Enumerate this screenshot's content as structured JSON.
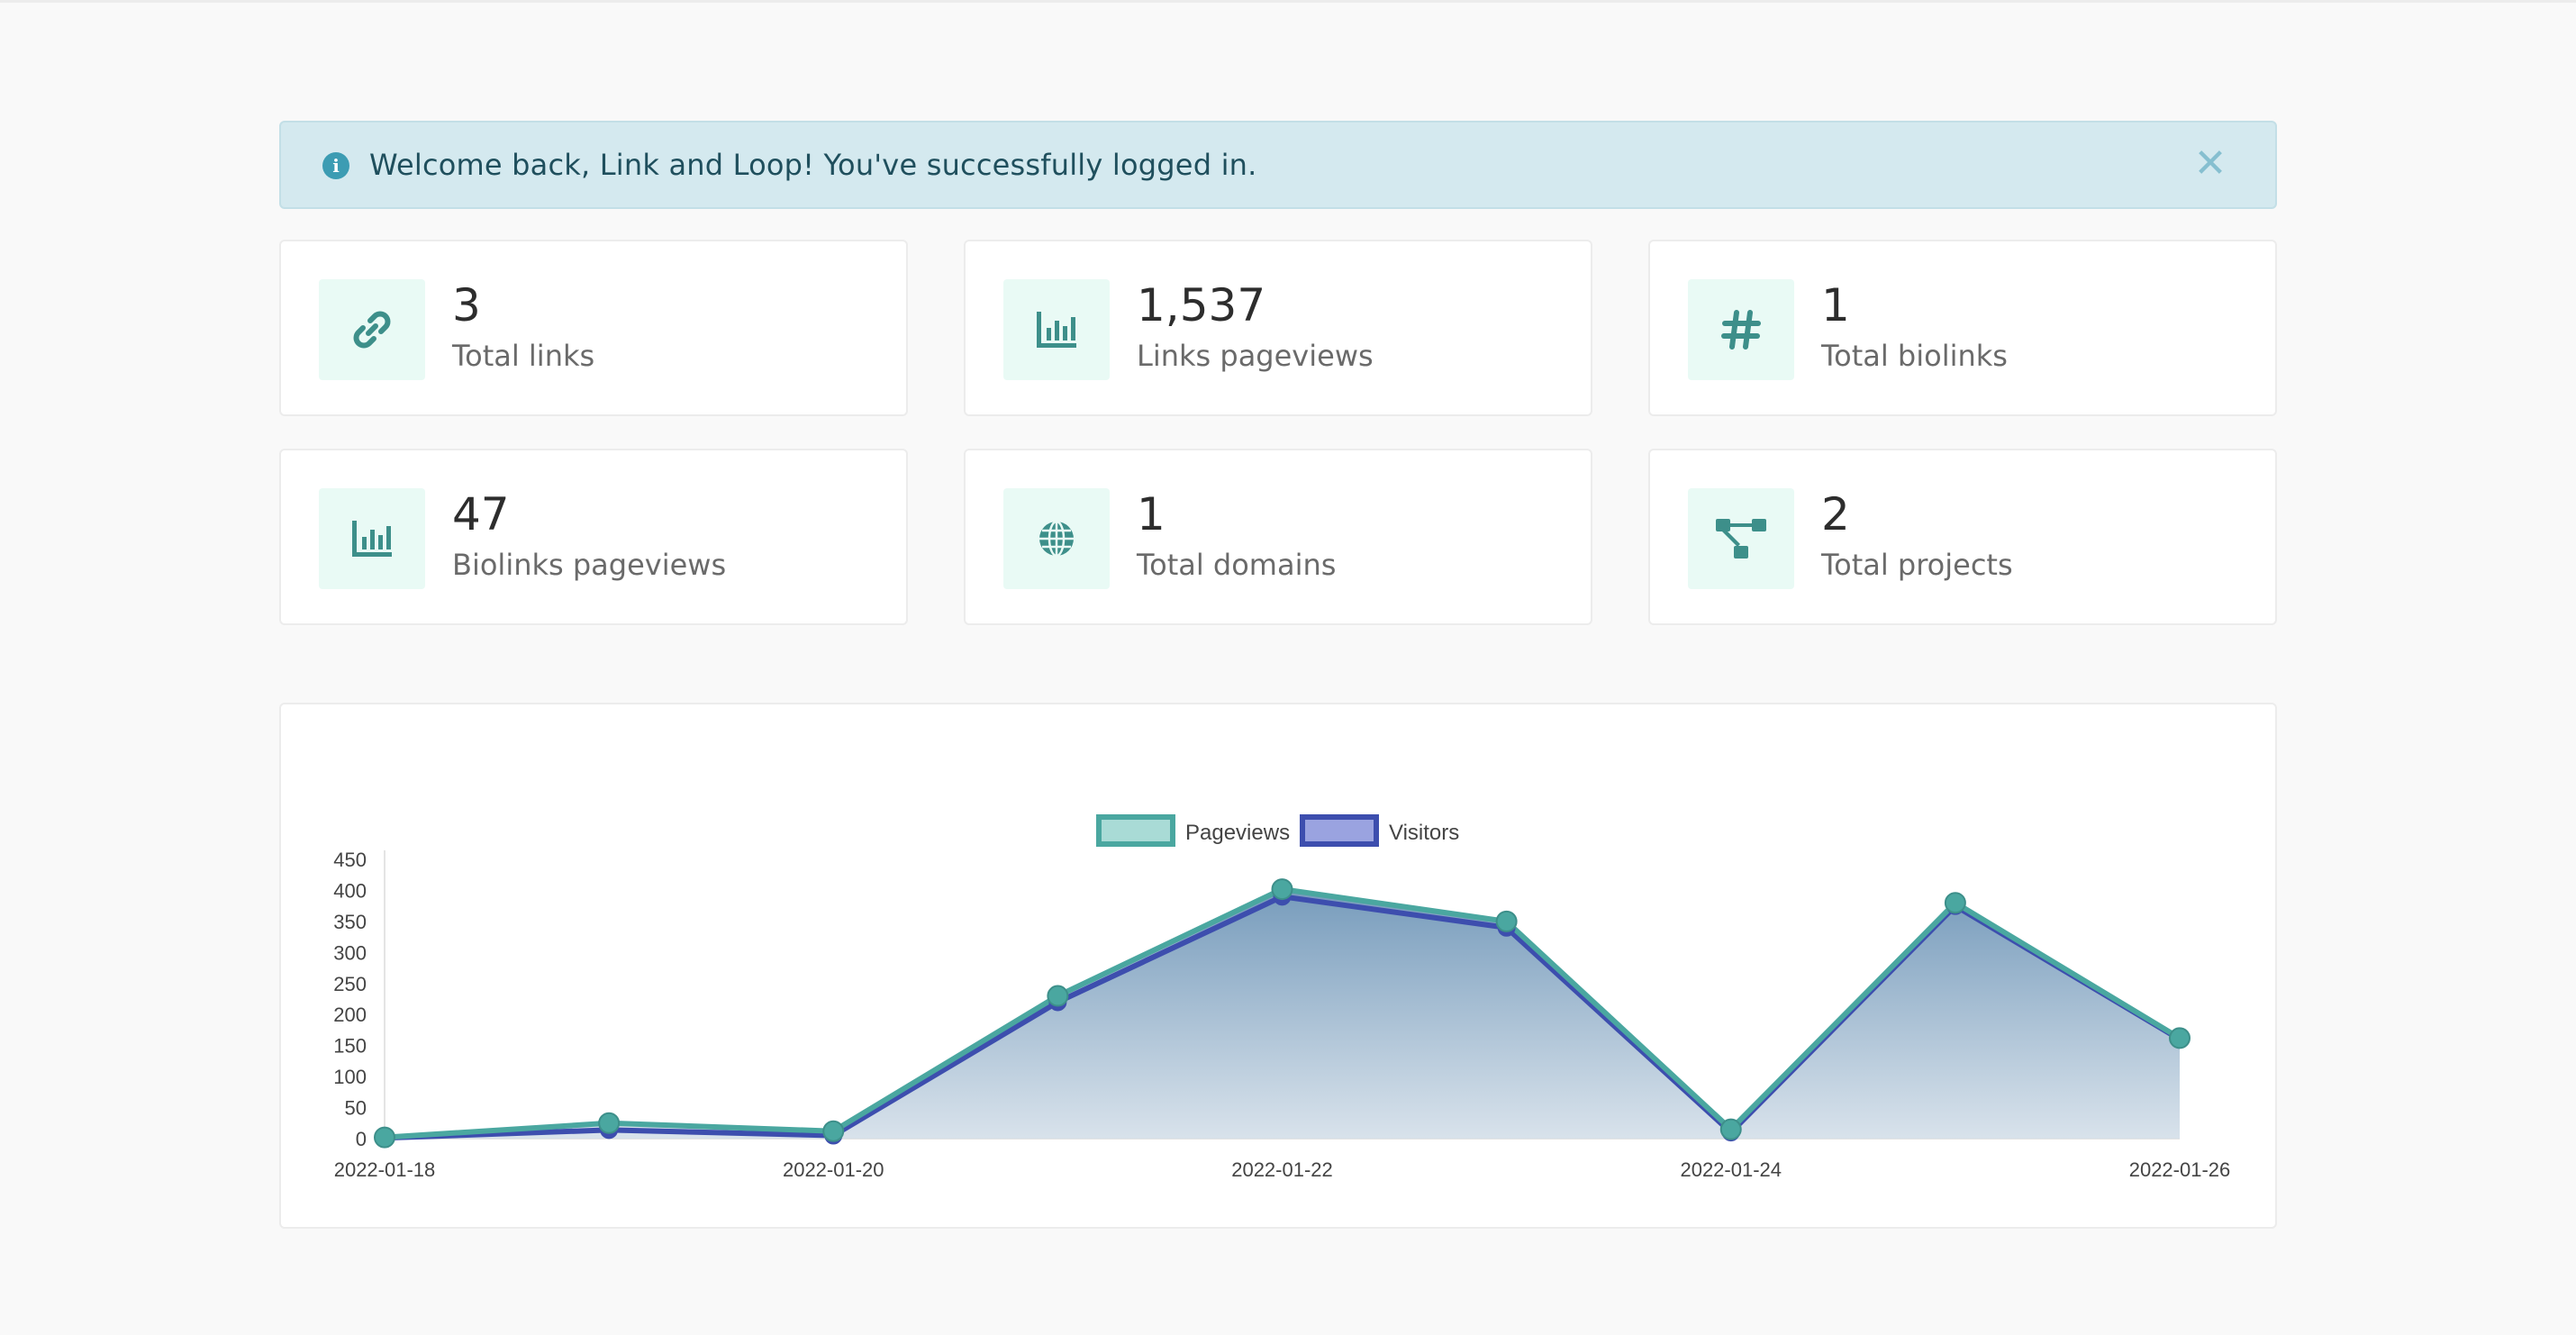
{
  "alert": {
    "message": "Welcome back, Link and Loop! You've successfully logged in.",
    "close_glyph": "✕",
    "info_glyph": "i"
  },
  "stats": [
    {
      "value": "3",
      "label": "Total links",
      "icon": "link-icon"
    },
    {
      "value": "1,537",
      "label": "Links pageviews",
      "icon": "bar-chart-icon"
    },
    {
      "value": "1",
      "label": "Total biolinks",
      "icon": "hashtag-icon"
    },
    {
      "value": "47",
      "label": "Biolinks pageviews",
      "icon": "bar-chart-icon"
    },
    {
      "value": "1",
      "label": "Total domains",
      "icon": "globe-icon"
    },
    {
      "value": "2",
      "label": "Total projects",
      "icon": "project-diagram-icon"
    }
  ],
  "colors": {
    "accent": "#4aa7a0",
    "visitors": "#3d4eae",
    "alert_bg": "#d4e9ef"
  },
  "chart_data": {
    "type": "line",
    "x": [
      "2022-01-18",
      "2022-01-19",
      "2022-01-20",
      "2022-01-21",
      "2022-01-22",
      "2022-01-23",
      "2022-01-24",
      "2022-01-25",
      "2022-01-26"
    ],
    "x_tick_labels": [
      "2022-01-18",
      "2022-01-20",
      "2022-01-22",
      "2022-01-24",
      "2022-01-26"
    ],
    "series": [
      {
        "name": "Pageviews",
        "values": [
          2,
          25,
          12,
          230,
          402,
          350,
          15,
          380,
          162
        ],
        "color": "#4aa7a0"
      },
      {
        "name": "Visitors",
        "values": [
          1,
          14,
          5,
          220,
          390,
          340,
          10,
          375,
          160
        ],
        "color": "#3d4eae"
      }
    ],
    "ylim": [
      0,
      450
    ],
    "y_ticks": [
      "0",
      "50",
      "100",
      "150",
      "200",
      "250",
      "300",
      "350",
      "400",
      "450"
    ],
    "legend": "top-center",
    "grid": false,
    "fill": true
  }
}
